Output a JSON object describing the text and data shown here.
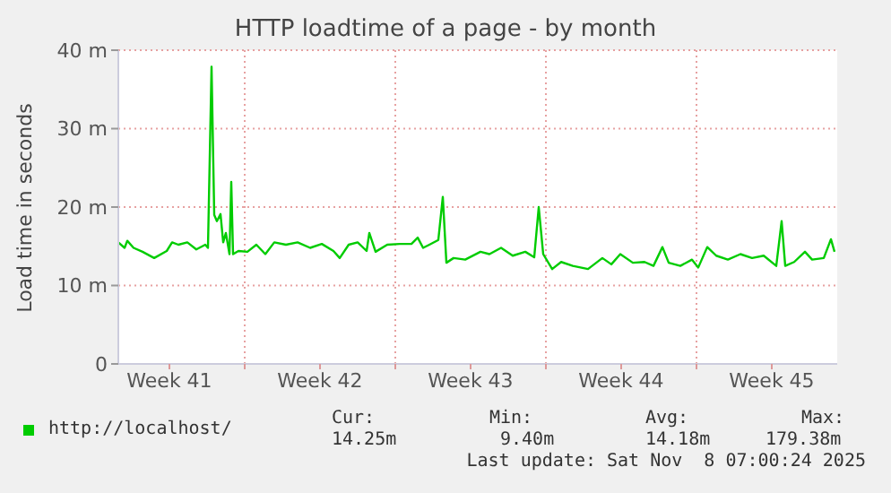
{
  "chart_data": {
    "type": "line",
    "title": "HTTP loadtime of a page - by month",
    "ylabel": "Load time in seconds",
    "xlim": [
      "2025-10-06T03:00",
      "2025-11-08T13:00"
    ],
    "xticks": [
      {
        "value": "2025-10-08T12:00",
        "label": "Week 41"
      },
      {
        "value": "2025-10-12T00:00",
        "label": null
      },
      {
        "value": "2025-10-15T12:00",
        "label": "Week 42"
      },
      {
        "value": "2025-10-19T00:00",
        "label": null
      },
      {
        "value": "2025-10-22T12:00",
        "label": "Week 43"
      },
      {
        "value": "2025-10-26T00:00",
        "label": null
      },
      {
        "value": "2025-10-29T12:00",
        "label": "Week 44"
      },
      {
        "value": "2025-11-02T00:00",
        "label": null
      },
      {
        "value": "2025-11-05T12:00",
        "label": "Week 45"
      }
    ],
    "ylim": [
      0,
      40
    ],
    "yticks": [
      0,
      {
        "value": 10,
        "label": "10 m"
      },
      {
        "value": 20,
        "label": "20 m"
      },
      {
        "value": 30,
        "label": "30 m"
      },
      {
        "value": 40,
        "label": "40 m"
      }
    ],
    "grid": true,
    "legend": "bottom left",
    "marker": "none",
    "line_style": "solid",
    "series": [
      {
        "name": "http://localhost/",
        "color": "#00cc00",
        "x": [
          "2025-10-06T03:00",
          "2025-10-06T10:00",
          "2025-10-06T13:00",
          "2025-10-06T20:00",
          "2025-10-07T06:00",
          "2025-10-07T19:00",
          "2025-10-08T09:00",
          "2025-10-08T15:00",
          "2025-10-08T22:00",
          "2025-10-09T08:00",
          "2025-10-09T18:00",
          "2025-10-10T04:00",
          "2025-10-10T07:00",
          "2025-10-10T11:00",
          "2025-10-10T14:00",
          "2025-10-10T17:00",
          "2025-10-10T21:00",
          "2025-10-11T00:00",
          "2025-10-11T03:00",
          "2025-10-11T07:00",
          "2025-10-11T09:00",
          "2025-10-11T11:00",
          "2025-10-11T17:00",
          "2025-10-12T03:00",
          "2025-10-12T13:00",
          "2025-10-12T23:00",
          "2025-10-13T09:00",
          "2025-10-13T22:00",
          "2025-10-14T11:00",
          "2025-10-15T01:00",
          "2025-10-15T14:00",
          "2025-10-16T03:00",
          "2025-10-16T10:00",
          "2025-10-16T20:00",
          "2025-10-17T06:00",
          "2025-10-17T16:00",
          "2025-10-17T19:00",
          "2025-10-18T02:00",
          "2025-10-18T15:00",
          "2025-10-19T05:00",
          "2025-10-19T18:00",
          "2025-10-20T01:00",
          "2025-10-20T07:00",
          "2025-10-20T14:00",
          "2025-10-21T00:00",
          "2025-10-21T05:00",
          "2025-10-21T09:00",
          "2025-10-21T17:00",
          "2025-10-22T06:00",
          "2025-10-22T23:00",
          "2025-10-23T09:00",
          "2025-10-23T22:00",
          "2025-10-24T11:00",
          "2025-10-25T01:00",
          "2025-10-25T11:00",
          "2025-10-25T16:00",
          "2025-10-25T21:00",
          "2025-10-26T07:00",
          "2025-10-26T17:00",
          "2025-10-27T06:00",
          "2025-10-27T23:00",
          "2025-10-28T15:00",
          "2025-10-29T01:00",
          "2025-10-29T11:00",
          "2025-10-30T01:00",
          "2025-10-30T14:00",
          "2025-10-31T00:00",
          "2025-10-31T10:00",
          "2025-10-31T17:00",
          "2025-11-01T06:00",
          "2025-11-01T19:00",
          "2025-11-02T02:00",
          "2025-11-02T12:00",
          "2025-11-02T22:00",
          "2025-11-03T11:00",
          "2025-11-04T01:00",
          "2025-11-04T14:00",
          "2025-11-05T03:00",
          "2025-11-05T17:00",
          "2025-11-05T23:00",
          "2025-11-06T03:00",
          "2025-11-06T13:00",
          "2025-11-07T01:00",
          "2025-11-07T09:00",
          "2025-11-07T22:00",
          "2025-11-08T06:00",
          "2025-11-08T10:00"
        ],
        "values": [
          15.5,
          14.8,
          15.7,
          14.8,
          14.3,
          13.5,
          14.4,
          15.5,
          15.2,
          15.5,
          14.6,
          15.2,
          14.8,
          37.9,
          19.0,
          18.2,
          19.1,
          15.5,
          16.7,
          14.0,
          23.2,
          14.0,
          14.4,
          14.3,
          15.2,
          14.0,
          15.5,
          15.2,
          15.5,
          14.8,
          15.3,
          14.4,
          13.5,
          15.2,
          15.5,
          14.4,
          16.7,
          14.3,
          15.2,
          15.3,
          15.3,
          16.1,
          14.8,
          15.2,
          15.8,
          21.3,
          12.9,
          13.5,
          13.3,
          14.3,
          14.0,
          14.8,
          13.8,
          14.3,
          13.6,
          20.0,
          14.0,
          12.1,
          13.0,
          12.5,
          12.1,
          13.5,
          12.7,
          14.0,
          12.9,
          13.0,
          12.5,
          14.9,
          12.9,
          12.5,
          13.3,
          12.3,
          14.9,
          13.8,
          13.3,
          14.0,
          13.5,
          13.8,
          12.5,
          18.2,
          12.5,
          13.0,
          14.3,
          13.3,
          13.5,
          15.9,
          14.3
        ]
      }
    ],
    "annotations": [
      "Cur:",
      "Min:",
      "Avg:",
      "Max:",
      "14.25m",
      "9.40m",
      "14.18m",
      "179.38m",
      "Last update: Sat Nov  8 07:00:24 2025"
    ]
  }
}
